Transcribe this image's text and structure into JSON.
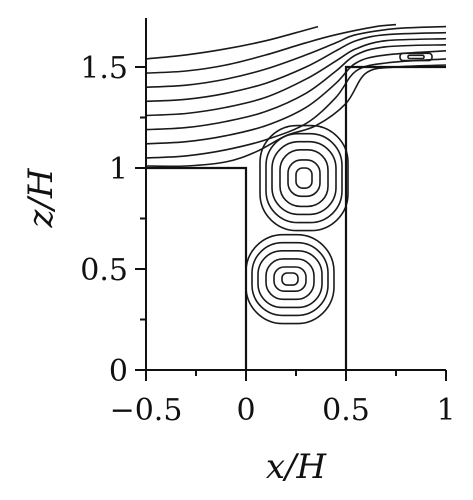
{
  "chart_data": {
    "type": "streamline",
    "title": "",
    "xlabel": "x/H",
    "ylabel": "z/H",
    "xlim": [
      -0.5,
      1.0
    ],
    "ylim": [
      0.0,
      1.7
    ],
    "grid": false,
    "legend": "none",
    "x_ticks": [
      {
        "value": -0.5,
        "label": "−0.5"
      },
      {
        "value": 0.0,
        "label": "0"
      },
      {
        "value": 0.5,
        "label": "0.5"
      },
      {
        "value": 1.0,
        "label": "1"
      }
    ],
    "x_minor_ticks": [
      -0.25,
      0.25,
      0.75
    ],
    "y_ticks": [
      {
        "value": 0.0,
        "label": "0"
      },
      {
        "value": 0.5,
        "label": "0.5"
      },
      {
        "value": 1.0,
        "label": "1"
      },
      {
        "value": 1.5,
        "label": "1.5"
      }
    ],
    "y_minor_ticks": [
      0.25,
      0.75,
      1.25
    ],
    "geometry": {
      "upstream_building_height": 1.0,
      "downstream_building_height": 1.5,
      "canyon_x": [
        0.0,
        0.5
      ]
    },
    "vortices": [
      {
        "name": "upper",
        "center": [
          0.29,
          0.95
        ],
        "rx": [
          0.04,
          0.08,
          0.12,
          0.16,
          0.19,
          0.22
        ],
        "rz": [
          0.05,
          0.09,
          0.14,
          0.18,
          0.22,
          0.26
        ]
      },
      {
        "name": "lower",
        "center": [
          0.22,
          0.45
        ],
        "rx": [
          0.04,
          0.08,
          0.12,
          0.16,
          0.19,
          0.22
        ],
        "rz": [
          0.03,
          0.06,
          0.1,
          0.14,
          0.18,
          0.22
        ]
      },
      {
        "name": "roof",
        "center": [
          0.85,
          1.55
        ],
        "rx": [
          0.04,
          0.08
        ],
        "rz": [
          0.008,
          0.018
        ]
      }
    ],
    "streamlines": [
      [
        [
          -0.5,
          1.01
        ],
        [
          -0.3,
          1.01
        ],
        [
          -0.1,
          1.03
        ],
        [
          0.05,
          1.08
        ],
        [
          0.2,
          1.16
        ],
        [
          0.35,
          1.21
        ],
        [
          0.5,
          1.32
        ],
        [
          0.6,
          1.47
        ],
        [
          0.75,
          1.5
        ],
        [
          1.0,
          1.51
        ]
      ],
      [
        [
          -0.5,
          1.05
        ],
        [
          -0.3,
          1.06
        ],
        [
          -0.1,
          1.09
        ],
        [
          0.1,
          1.14
        ],
        [
          0.3,
          1.22
        ],
        [
          0.45,
          1.35
        ],
        [
          0.55,
          1.48
        ],
        [
          0.7,
          1.52
        ],
        [
          1.0,
          1.54
        ]
      ],
      [
        [
          -0.5,
          1.12
        ],
        [
          -0.3,
          1.13
        ],
        [
          -0.1,
          1.16
        ],
        [
          0.1,
          1.21
        ],
        [
          0.3,
          1.3
        ],
        [
          0.45,
          1.42
        ],
        [
          0.55,
          1.52
        ],
        [
          0.7,
          1.56
        ],
        [
          1.0,
          1.58
        ]
      ],
      [
        [
          -0.5,
          1.19
        ],
        [
          -0.3,
          1.2
        ],
        [
          -0.1,
          1.23
        ],
        [
          0.1,
          1.28
        ],
        [
          0.3,
          1.37
        ],
        [
          0.45,
          1.48
        ],
        [
          0.55,
          1.56
        ],
        [
          0.7,
          1.6
        ],
        [
          1.0,
          1.61
        ]
      ],
      [
        [
          -0.5,
          1.26
        ],
        [
          -0.3,
          1.27
        ],
        [
          -0.1,
          1.3
        ],
        [
          0.1,
          1.35
        ],
        [
          0.3,
          1.44
        ],
        [
          0.45,
          1.53
        ],
        [
          0.55,
          1.59
        ],
        [
          0.7,
          1.63
        ],
        [
          1.0,
          1.64
        ]
      ],
      [
        [
          -0.5,
          1.33
        ],
        [
          -0.3,
          1.34
        ],
        [
          -0.1,
          1.37
        ],
        [
          0.1,
          1.42
        ],
        [
          0.3,
          1.5
        ],
        [
          0.45,
          1.58
        ],
        [
          0.55,
          1.63
        ],
        [
          0.7,
          1.66
        ],
        [
          1.0,
          1.67
        ]
      ],
      [
        [
          -0.5,
          1.4
        ],
        [
          -0.3,
          1.41
        ],
        [
          -0.1,
          1.44
        ],
        [
          0.1,
          1.49
        ],
        [
          0.3,
          1.56
        ],
        [
          0.45,
          1.62
        ],
        [
          0.55,
          1.66
        ],
        [
          0.75,
          1.69
        ],
        [
          1.0,
          1.7
        ]
      ],
      [
        [
          -0.5,
          1.47
        ],
        [
          -0.3,
          1.48
        ],
        [
          -0.1,
          1.51
        ],
        [
          0.1,
          1.56
        ],
        [
          0.3,
          1.62
        ],
        [
          0.45,
          1.66
        ],
        [
          0.65,
          1.7
        ],
        [
          0.75,
          1.71
        ]
      ],
      [
        [
          -0.5,
          1.54
        ],
        [
          -0.3,
          1.56
        ],
        [
          -0.1,
          1.59
        ],
        [
          0.1,
          1.63
        ],
        [
          0.25,
          1.67
        ],
        [
          0.36,
          1.7
        ]
      ]
    ]
  }
}
